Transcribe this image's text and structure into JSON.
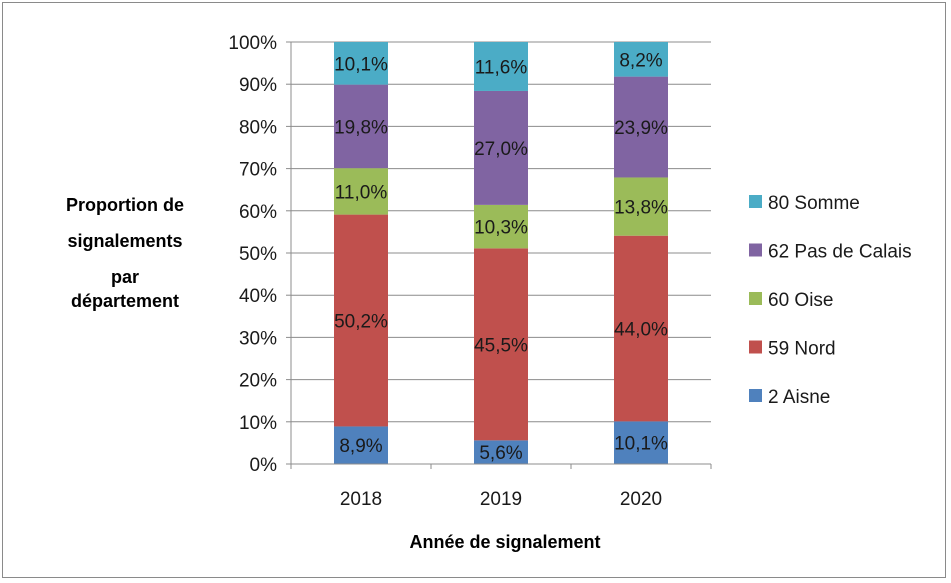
{
  "chart_data": {
    "type": "bar",
    "stacked": true,
    "percent": true,
    "categories": [
      "2018",
      "2019",
      "2020"
    ],
    "series": [
      {
        "name": "2 Aisne",
        "color": "#4f81bd",
        "values": [
          8.9,
          5.6,
          10.1
        ],
        "labels": [
          "8,9%",
          "5,6%",
          "10,1%"
        ]
      },
      {
        "name": "59 Nord",
        "color": "#c0504d",
        "values": [
          50.2,
          45.5,
          44.0
        ],
        "labels": [
          "50,2%",
          "45,5%",
          "44,0%"
        ]
      },
      {
        "name": "60 Oise",
        "color": "#9bbb59",
        "values": [
          11.0,
          10.3,
          13.8
        ],
        "labels": [
          "11,0%",
          "10,3%",
          "13,8%"
        ]
      },
      {
        "name": "62 Pas de Calais",
        "color": "#8064a2",
        "values": [
          19.8,
          27.0,
          23.9
        ],
        "labels": [
          "19,8%",
          "27,0%",
          "23,9%"
        ]
      },
      {
        "name": "80 Somme",
        "color": "#4bacc6",
        "values": [
          10.1,
          11.6,
          8.2
        ],
        "labels": [
          "10,1%",
          "11,6%",
          "8,2%"
        ]
      }
    ],
    "y_ticks": [
      "0%",
      "10%",
      "20%",
      "30%",
      "40%",
      "50%",
      "60%",
      "70%",
      "80%",
      "90%",
      "100%"
    ],
    "ylim": [
      0,
      100
    ],
    "xlabel": "Année de signalement",
    "ylabel_lines": [
      "Proportion de",
      "signalements",
      "par",
      "département"
    ],
    "legend_position": "right",
    "grid": "horizontal"
  }
}
